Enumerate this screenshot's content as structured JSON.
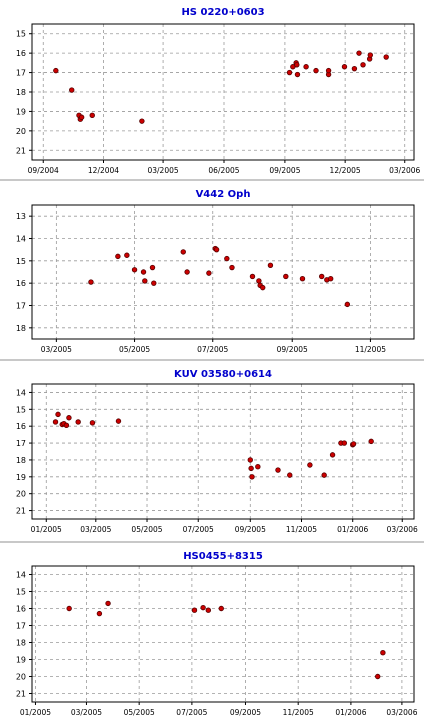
{
  "chart_data": [
    {
      "type": "scatter",
      "title": "HS 0220+0603",
      "xlabel": "",
      "ylabel": "",
      "xlim": [
        "2004-08-15",
        "2006-03-15"
      ],
      "ylim": [
        21.5,
        14.5
      ],
      "y_inverted": true,
      "grid": true,
      "marker_color": "#cc0000",
      "title_color": "#0000cc",
      "x_ticks": [
        {
          "date": "2004-09-01",
          "label": "09/2004"
        },
        {
          "date": "2004-12-01",
          "label": "12/2004"
        },
        {
          "date": "2005-03-01",
          "label": "03/2005"
        },
        {
          "date": "2005-06-01",
          "label": "06/2005"
        },
        {
          "date": "2005-09-01",
          "label": "09/2005"
        },
        {
          "date": "2005-12-01",
          "label": "12/2005"
        },
        {
          "date": "2006-03-01",
          "label": "03/2006"
        }
      ],
      "y_ticks": [
        15,
        16,
        17,
        18,
        19,
        20,
        21
      ],
      "points": [
        {
          "x": "2004-09-20",
          "y": 16.9
        },
        {
          "x": "2004-10-14",
          "y": 17.9
        },
        {
          "x": "2004-10-25",
          "y": 19.2
        },
        {
          "x": "2004-10-27",
          "y": 19.4
        },
        {
          "x": "2004-10-29",
          "y": 19.3
        },
        {
          "x": "2004-11-14",
          "y": 19.2
        },
        {
          "x": "2005-01-28",
          "y": 19.5
        },
        {
          "x": "2005-09-08",
          "y": 17.0
        },
        {
          "x": "2005-09-13",
          "y": 16.7
        },
        {
          "x": "2005-09-18",
          "y": 16.5
        },
        {
          "x": "2005-09-19",
          "y": 16.6
        },
        {
          "x": "2005-09-20",
          "y": 17.1
        },
        {
          "x": "2005-10-03",
          "y": 16.7
        },
        {
          "x": "2005-10-18",
          "y": 16.9
        },
        {
          "x": "2005-11-06",
          "y": 17.1
        },
        {
          "x": "2005-11-06",
          "y": 16.9
        },
        {
          "x": "2005-11-30",
          "y": 16.7
        },
        {
          "x": "2005-12-15",
          "y": 16.8
        },
        {
          "x": "2005-12-22",
          "y": 16.0
        },
        {
          "x": "2005-12-28",
          "y": 16.6
        },
        {
          "x": "2006-01-07",
          "y": 16.3
        },
        {
          "x": "2006-01-08",
          "y": 16.1
        },
        {
          "x": "2006-02-01",
          "y": 16.2
        }
      ]
    },
    {
      "type": "scatter",
      "title": "V442 Oph",
      "xlabel": "",
      "ylabel": "",
      "xlim": [
        "2005-02-10",
        "2005-12-05"
      ],
      "ylim": [
        18.5,
        12.5
      ],
      "y_inverted": true,
      "grid": true,
      "marker_color": "#cc0000",
      "title_color": "#0000cc",
      "x_ticks": [
        {
          "date": "2005-03-01",
          "label": "03/2005"
        },
        {
          "date": "2005-05-01",
          "label": "05/2005"
        },
        {
          "date": "2005-07-01",
          "label": "07/2005"
        },
        {
          "date": "2005-09-01",
          "label": "09/2005"
        },
        {
          "date": "2005-11-01",
          "label": "11/2005"
        }
      ],
      "y_ticks": [
        13,
        14,
        15,
        16,
        17,
        18
      ],
      "points": [
        {
          "x": "2005-03-28",
          "y": 15.95
        },
        {
          "x": "2005-04-18",
          "y": 14.8
        },
        {
          "x": "2005-04-25",
          "y": 14.75
        },
        {
          "x": "2005-05-01",
          "y": 15.4
        },
        {
          "x": "2005-05-08",
          "y": 15.5
        },
        {
          "x": "2005-05-09",
          "y": 15.9
        },
        {
          "x": "2005-05-15",
          "y": 15.3
        },
        {
          "x": "2005-05-16",
          "y": 16.0
        },
        {
          "x": "2005-06-08",
          "y": 14.6
        },
        {
          "x": "2005-06-11",
          "y": 15.5
        },
        {
          "x": "2005-06-28",
          "y": 15.55
        },
        {
          "x": "2005-07-03",
          "y": 14.45
        },
        {
          "x": "2005-07-04",
          "y": 14.5
        },
        {
          "x": "2005-07-12",
          "y": 14.9
        },
        {
          "x": "2005-07-16",
          "y": 15.3
        },
        {
          "x": "2005-08-01",
          "y": 15.7
        },
        {
          "x": "2005-08-06",
          "y": 15.9
        },
        {
          "x": "2005-08-07",
          "y": 16.1
        },
        {
          "x": "2005-08-09",
          "y": 16.2
        },
        {
          "x": "2005-08-15",
          "y": 15.2
        },
        {
          "x": "2005-08-27",
          "y": 15.7
        },
        {
          "x": "2005-09-09",
          "y": 15.8
        },
        {
          "x": "2005-09-24",
          "y": 15.7
        },
        {
          "x": "2005-09-28",
          "y": 15.85
        },
        {
          "x": "2005-10-01",
          "y": 15.8
        },
        {
          "x": "2005-10-14",
          "y": 16.95
        }
      ]
    },
    {
      "type": "scatter",
      "title": "KUV 03580+0614",
      "xlabel": "",
      "ylabel": "",
      "xlim": [
        "2004-12-15",
        "2006-03-15"
      ],
      "ylim": [
        21.5,
        13.5
      ],
      "y_inverted": true,
      "grid": true,
      "marker_color": "#cc0000",
      "title_color": "#0000cc",
      "x_ticks": [
        {
          "date": "2005-01-01",
          "label": "01/2005"
        },
        {
          "date": "2005-03-01",
          "label": "03/2005"
        },
        {
          "date": "2005-05-01",
          "label": "05/2005"
        },
        {
          "date": "2005-07-01",
          "label": "07/2005"
        },
        {
          "date": "2005-09-01",
          "label": "09/2005"
        },
        {
          "date": "2005-11-01",
          "label": "11/2005"
        },
        {
          "date": "2006-01-01",
          "label": "01/2006"
        },
        {
          "date": "2006-03-01",
          "label": "03/2006"
        }
      ],
      "y_ticks": [
        14,
        15,
        16,
        17,
        18,
        19,
        20,
        21
      ],
      "points": [
        {
          "x": "2005-01-12",
          "y": 15.75
        },
        {
          "x": "2005-01-15",
          "y": 15.3
        },
        {
          "x": "2005-01-20",
          "y": 15.9
        },
        {
          "x": "2005-01-22",
          "y": 15.85
        },
        {
          "x": "2005-01-25",
          "y": 15.95
        },
        {
          "x": "2005-01-28",
          "y": 15.5
        },
        {
          "x": "2005-02-08",
          "y": 15.75
        },
        {
          "x": "2005-02-25",
          "y": 15.8
        },
        {
          "x": "2005-03-28",
          "y": 15.7
        },
        {
          "x": "2005-09-01",
          "y": 18.0
        },
        {
          "x": "2005-09-02",
          "y": 18.5
        },
        {
          "x": "2005-09-03",
          "y": 19.0
        },
        {
          "x": "2005-09-10",
          "y": 18.4
        },
        {
          "x": "2005-10-04",
          "y": 18.6
        },
        {
          "x": "2005-10-18",
          "y": 18.9
        },
        {
          "x": "2005-11-11",
          "y": 18.3
        },
        {
          "x": "2005-11-28",
          "y": 18.9
        },
        {
          "x": "2005-12-08",
          "y": 17.7
        },
        {
          "x": "2005-12-18",
          "y": 17.0
        },
        {
          "x": "2005-12-22",
          "y": 17.0
        },
        {
          "x": "2006-01-01",
          "y": 17.1
        },
        {
          "x": "2006-01-02",
          "y": 17.05
        },
        {
          "x": "2006-01-23",
          "y": 16.9
        }
      ]
    },
    {
      "type": "scatter",
      "title": "HS0455+8315",
      "xlabel": "",
      "ylabel": "",
      "xlim": [
        "2004-12-28",
        "2006-03-15"
      ],
      "ylim": [
        21.5,
        13.5
      ],
      "y_inverted": true,
      "grid": true,
      "marker_color": "#cc0000",
      "title_color": "#0000cc",
      "x_ticks": [
        {
          "date": "2005-01-01",
          "label": "01/2005"
        },
        {
          "date": "2005-03-01",
          "label": "03/2005"
        },
        {
          "date": "2005-05-01",
          "label": "05/2005"
        },
        {
          "date": "2005-07-01",
          "label": "07/2005"
        },
        {
          "date": "2005-09-01",
          "label": "09/2005"
        },
        {
          "date": "2005-11-01",
          "label": "11/2005"
        },
        {
          "date": "2006-01-01",
          "label": "01/2006"
        },
        {
          "date": "2006-03-01",
          "label": "03/2006"
        }
      ],
      "y_ticks": [
        14,
        15,
        16,
        17,
        18,
        19,
        20,
        21
      ],
      "points": [
        {
          "x": "2005-02-09",
          "y": 16.0
        },
        {
          "x": "2005-03-16",
          "y": 16.3
        },
        {
          "x": "2005-03-26",
          "y": 15.7
        },
        {
          "x": "2005-07-04",
          "y": 16.1
        },
        {
          "x": "2005-07-14",
          "y": 15.95
        },
        {
          "x": "2005-07-20",
          "y": 16.1
        },
        {
          "x": "2005-08-04",
          "y": 16.0
        },
        {
          "x": "2006-02-01",
          "y": 20.0
        },
        {
          "x": "2006-02-07",
          "y": 18.6
        }
      ]
    }
  ]
}
